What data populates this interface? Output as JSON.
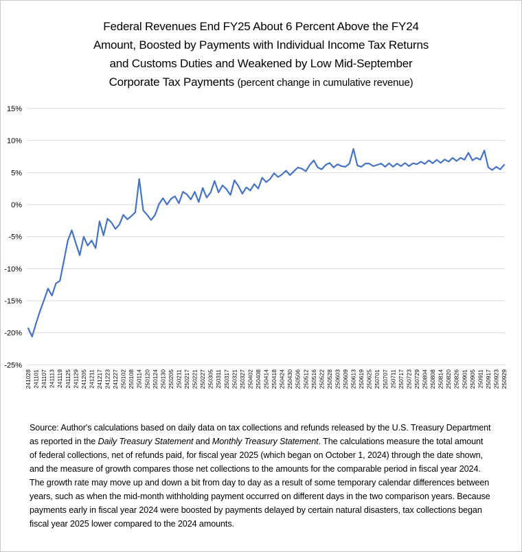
{
  "window": {
    "background": "#ffffff",
    "border_color": "#c9c9c9"
  },
  "title": {
    "line1": "Federal Revenues End FY25 About 6 Percent Above the FY24",
    "line2": "Amount, Boosted by Payments with Individual Income Tax Returns",
    "line3": "and Customs Duties and Weakened by Low Mid-September",
    "line4_main": "Corporate Tax Payments ",
    "line4_paren": "(percent change in cumulative revenue)"
  },
  "chart_data": {
    "type": "line",
    "title": "Federal Revenues End FY25 About 6 Percent Above the FY24 Amount (percent change in cumulative revenue)",
    "xlabel": "",
    "ylabel": "",
    "ylim": [
      -25,
      15
    ],
    "grid": true,
    "legend": "none",
    "line_color": "#4472C4",
    "gridline_color": "#d9d9d9",
    "axis_text_color": "#000000",
    "y_tick_labels": [
      "15%",
      "10%",
      "5%",
      "0%",
      "-5%",
      "-10%",
      "-15%",
      "-20%",
      "-25%"
    ],
    "y_tick_values": [
      15,
      10,
      5,
      0,
      -5,
      -10,
      -15,
      -20,
      -25
    ],
    "x_labels": [
      "241028",
      "241101",
      "241107",
      "241113",
      "241119",
      "241125",
      "241129",
      "241205",
      "241211",
      "241217",
      "241223",
      "241227",
      "250102",
      "250108",
      "250114",
      "250120",
      "250124",
      "250130",
      "250205",
      "250211",
      "250217",
      "250221",
      "250227",
      "250305",
      "250311",
      "250317",
      "250321",
      "250327",
      "250402",
      "250408",
      "250414",
      "250418",
      "250424",
      "250430",
      "250506",
      "250512",
      "250516",
      "250522",
      "250528",
      "250603",
      "250609",
      "250613",
      "250619",
      "250625",
      "250701",
      "250707",
      "250711",
      "250717",
      "250723",
      "250729",
      "250804",
      "250808",
      "250814",
      "250820",
      "250826",
      "250901",
      "250905",
      "250911",
      "250917",
      "250923",
      "250929"
    ],
    "points_per_label_interval": 2,
    "values_note": "percent change vs FY24, sampled at two points per x-label interval",
    "values": [
      -19.3,
      -20.6,
      -18.5,
      -16.6,
      -14.9,
      -13.1,
      -14.2,
      -12.3,
      -11.9,
      -8.8,
      -5.6,
      -4.0,
      -6.0,
      -7.9,
      -5.0,
      -6.4,
      -5.6,
      -6.8,
      -2.6,
      -4.8,
      -2.2,
      -2.8,
      -3.8,
      -3.1,
      -1.6,
      -2.3,
      -1.8,
      -1.2,
      4.0,
      -0.9,
      -1.6,
      -2.4,
      -1.6,
      0.1,
      1.0,
      0.0,
      0.9,
      1.3,
      0.2,
      2.0,
      1.6,
      0.8,
      2.0,
      0.4,
      2.6,
      1.1,
      1.9,
      3.7,
      1.9,
      3.0,
      2.4,
      1.5,
      3.8,
      2.9,
      1.7,
      2.7,
      2.2,
      3.2,
      2.5,
      4.2,
      3.5,
      4.0,
      4.9,
      4.3,
      4.7,
      5.3,
      4.6,
      5.2,
      5.8,
      5.6,
      5.2,
      6.2,
      6.9,
      5.8,
      5.5,
      6.2,
      6.5,
      5.8,
      6.3,
      6.0,
      5.9,
      6.4,
      8.7,
      6.1,
      5.9,
      6.4,
      6.4,
      6.0,
      6.2,
      6.4,
      5.9,
      6.45,
      5.9,
      6.4,
      6.0,
      6.5,
      6.0,
      6.45,
      6.3,
      6.7,
      6.35,
      6.9,
      6.45,
      7.0,
      6.5,
      7.05,
      6.7,
      7.3,
      6.8,
      7.3,
      7.0,
      8.1,
      6.9,
      7.3,
      7.0,
      8.45,
      5.8,
      5.4,
      5.9,
      5.5,
      6.2
    ]
  },
  "source": {
    "prefix": "Source: Author's calculations based on daily data on tax collections and refunds released by the U.S. Treasury Department as reported in the ",
    "italic1": "Daily Treasury Statement",
    "mid": " and ",
    "italic2": "Monthly Treasury Statement",
    "suffix": ". The calculations measure the total amount of federal collections, net of refunds paid, for fiscal year 2025 (which began on October 1, 2024)  through the date shown, and the measure of growth compares those net collections to the amounts for the comparable period in fiscal year 2024. The growth rate may move up and down a bit from day to day as a result of some temporary calendar differences between years, such as when the mid-month withholding payment occurred on different days in the two comparison years. Because payments early in fiscal year 2024  were boosted by payments delayed by certain natural disasters, tax collections began fiscal year 2025  lower compared to the 2024  amounts."
  }
}
